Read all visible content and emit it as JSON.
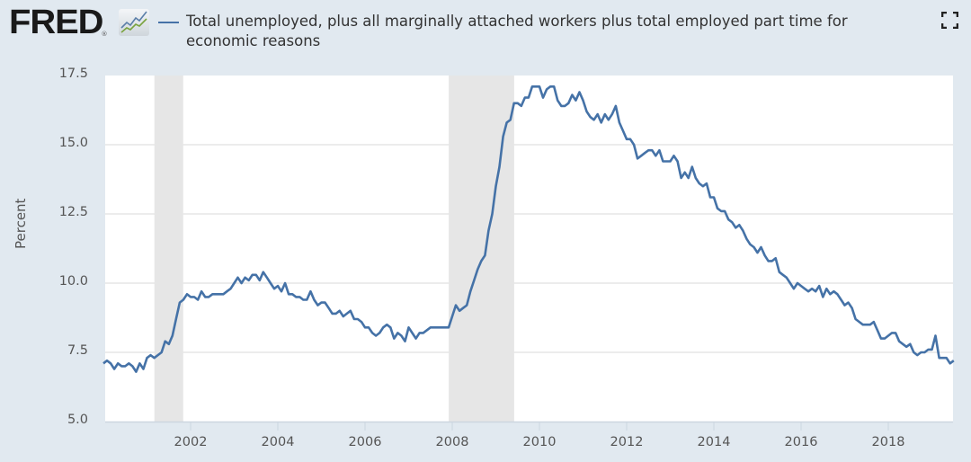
{
  "header": {
    "logo_text": "FRED",
    "logo_reg": "®",
    "legend_label": "Total unemployed, plus all marginally attached workers plus total employed part time for economic reasons",
    "fullscreen_icon": "fullscreen-expand-icon"
  },
  "colors": {
    "background": "#e1e9f0",
    "plot_background": "#ffffff",
    "series_line": "#4572a7",
    "recession_band": "#e6e6e6",
    "gridline": "#e6e6e6"
  },
  "chart_data": {
    "type": "line",
    "title": "Total unemployed, plus all marginally attached workers plus total employed part time for economic reasons",
    "xlabel": "",
    "ylabel": "Percent",
    "ylim": [
      5.0,
      17.5
    ],
    "xlim": [
      2000.0,
      2019.5
    ],
    "yticks": [
      "5.0",
      "7.5",
      "10.0",
      "12.5",
      "15.0",
      "17.5"
    ],
    "xticks": [
      "2002",
      "2004",
      "2006",
      "2008",
      "2010",
      "2012",
      "2014",
      "2016",
      "2018"
    ],
    "grid": true,
    "legend_position": "top",
    "recessions": [
      {
        "start": 2001.17,
        "end": 2001.83
      },
      {
        "start": 2007.92,
        "end": 2009.42
      }
    ],
    "series": [
      {
        "name": "Total unemployed, plus all marginally attached workers plus total employed part time for economic reasons",
        "start": "2000-01",
        "frequency": "monthly",
        "values": [
          7.1,
          7.2,
          7.1,
          6.9,
          7.1,
          7.0,
          7.0,
          7.1,
          7.0,
          6.8,
          7.1,
          6.9,
          7.3,
          7.4,
          7.3,
          7.4,
          7.5,
          7.9,
          7.8,
          8.1,
          8.7,
          9.3,
          9.4,
          9.6,
          9.5,
          9.5,
          9.4,
          9.7,
          9.5,
          9.5,
          9.6,
          9.6,
          9.6,
          9.6,
          9.7,
          9.8,
          10.0,
          10.2,
          10.0,
          10.2,
          10.1,
          10.3,
          10.3,
          10.1,
          10.4,
          10.2,
          10.0,
          9.8,
          9.9,
          9.7,
          10.0,
          9.6,
          9.6,
          9.5,
          9.5,
          9.4,
          9.4,
          9.7,
          9.4,
          9.2,
          9.3,
          9.3,
          9.1,
          8.9,
          8.9,
          9.0,
          8.8,
          8.9,
          9.0,
          8.7,
          8.7,
          8.6,
          8.4,
          8.4,
          8.2,
          8.1,
          8.2,
          8.4,
          8.5,
          8.4,
          8.0,
          8.2,
          8.1,
          7.9,
          8.4,
          8.2,
          8.0,
          8.2,
          8.2,
          8.3,
          8.4,
          8.4,
          8.4,
          8.4,
          8.4,
          8.4,
          8.8,
          9.2,
          9.0,
          9.1,
          9.2,
          9.7,
          10.1,
          10.5,
          10.8,
          11.0,
          11.9,
          12.5,
          13.5,
          14.2,
          15.3,
          15.8,
          15.9,
          16.5,
          16.5,
          16.4,
          16.7,
          16.7,
          17.1,
          17.1,
          17.1,
          16.7,
          17.0,
          17.1,
          17.1,
          16.6,
          16.4,
          16.4,
          16.5,
          16.8,
          16.6,
          16.9,
          16.6,
          16.2,
          16.0,
          15.9,
          16.1,
          15.8,
          16.1,
          15.9,
          16.1,
          16.4,
          15.8,
          15.5,
          15.2,
          15.2,
          15.0,
          14.5,
          14.6,
          14.7,
          14.8,
          14.8,
          14.6,
          14.8,
          14.4,
          14.4,
          14.4,
          14.6,
          14.4,
          13.8,
          14.0,
          13.8,
          14.2,
          13.8,
          13.6,
          13.5,
          13.6,
          13.1,
          13.1,
          12.7,
          12.6,
          12.6,
          12.3,
          12.2,
          12.0,
          12.1,
          11.9,
          11.6,
          11.4,
          11.3,
          11.1,
          11.3,
          11.0,
          10.8,
          10.8,
          10.9,
          10.4,
          10.3,
          10.2,
          10.0,
          9.8,
          10.0,
          9.9,
          9.8,
          9.7,
          9.8,
          9.7,
          9.9,
          9.5,
          9.8,
          9.6,
          9.7,
          9.6,
          9.4,
          9.2,
          9.3,
          9.1,
          8.7,
          8.6,
          8.5,
          8.5,
          8.5,
          8.6,
          8.3,
          8.0,
          8.0,
          8.1,
          8.2,
          8.2,
          7.9,
          7.8,
          7.7,
          7.8,
          7.5,
          7.4,
          7.5,
          7.5,
          7.6,
          7.6,
          8.1,
          7.3,
          7.3,
          7.3,
          7.1,
          7.2
        ]
      }
    ]
  }
}
